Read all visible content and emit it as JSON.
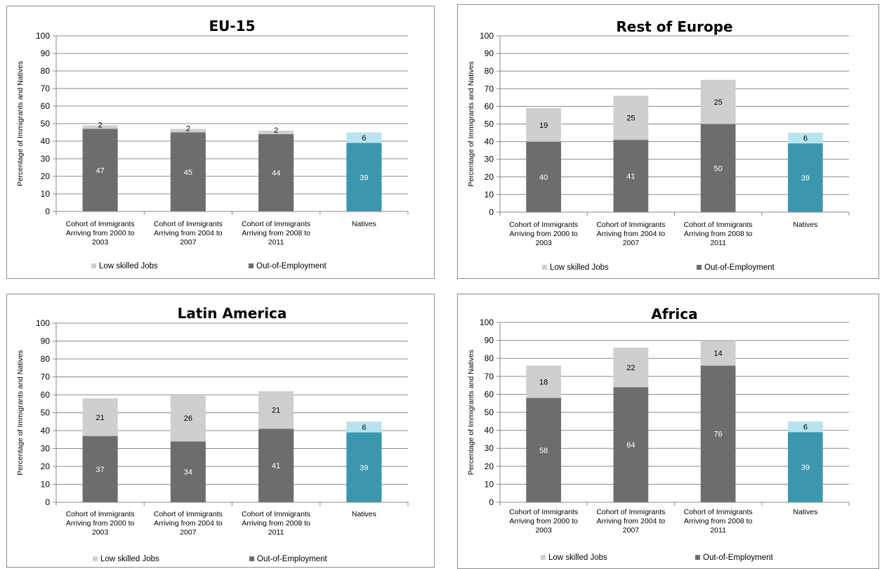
{
  "chart_data": [
    {
      "type": "bar",
      "stacked": true,
      "title": "EU-15",
      "ylabel": "Percentage of Immigrants and Natives",
      "ylim": [
        0,
        100
      ],
      "yticks": [
        0,
        10,
        20,
        30,
        40,
        50,
        60,
        70,
        80,
        90,
        100
      ],
      "categories": [
        [
          "Cohort of Immigrants",
          "Arriving from 2000 to",
          "2003"
        ],
        [
          "Cohort of Immigrants",
          "Arriving from 2004 to",
          "2007"
        ],
        [
          "Cohort of Immigrants",
          "Arriving from 2008 to",
          "2011"
        ],
        [
          "Natives"
        ]
      ],
      "series": [
        {
          "name": "Out-of-Employment",
          "values": [
            47,
            45,
            44,
            39
          ]
        },
        {
          "name": "Low skilled Jobs",
          "values": [
            2,
            2,
            2,
            6
          ]
        }
      ],
      "legend_position": "bottom"
    },
    {
      "type": "bar",
      "stacked": true,
      "title": "Rest of Europe",
      "ylabel": "Percentage of Immigrants and Natives",
      "ylim": [
        0,
        100
      ],
      "yticks": [
        0,
        10,
        20,
        30,
        40,
        50,
        60,
        70,
        80,
        90,
        100
      ],
      "categories": [
        [
          "Cohort of Immigrants",
          "Arriving from 2000 to",
          "2003"
        ],
        [
          "Cohort of Immigrants",
          "Arriving from 2004 to",
          "2007"
        ],
        [
          "Cohort of Immigrants",
          "Arriving from 2008 to",
          "2011"
        ],
        [
          "Natives"
        ]
      ],
      "series": [
        {
          "name": "Out-of-Employment",
          "values": [
            40,
            41,
            50,
            39
          ]
        },
        {
          "name": "Low skilled Jobs",
          "values": [
            19,
            25,
            25,
            6
          ]
        }
      ],
      "legend_position": "bottom"
    },
    {
      "type": "bar",
      "stacked": true,
      "title": "Latin America",
      "ylabel": "Percentage of Immigrants and Natives",
      "ylim": [
        0,
        100
      ],
      "yticks": [
        0,
        10,
        20,
        30,
        40,
        50,
        60,
        70,
        80,
        90,
        100
      ],
      "categories": [
        [
          "Cohort of Immigrants",
          "Arriving from 2000 to",
          "2003"
        ],
        [
          "Cohort of Immigrants",
          "Arriving from 2004 to",
          "2007"
        ],
        [
          "Cohort of Immigrants",
          "Arriving from 2008 to",
          "2011"
        ],
        [
          "Natives"
        ]
      ],
      "series": [
        {
          "name": "Out-of-Employment",
          "values": [
            37,
            34,
            41,
            39
          ]
        },
        {
          "name": "Low skilled Jobs",
          "values": [
            21,
            26,
            21,
            6
          ]
        }
      ],
      "legend_position": "bottom"
    },
    {
      "type": "bar",
      "stacked": true,
      "title": "Africa",
      "ylabel": "Percentage of Immigrants and Natives",
      "ylim": [
        0,
        100
      ],
      "yticks": [
        0,
        10,
        20,
        30,
        40,
        50,
        60,
        70,
        80,
        90,
        100
      ],
      "categories": [
        [
          "Cohort of Immigrants",
          "Arriving from 2000 to",
          "2003"
        ],
        [
          "Cohort of Immigrants",
          "Arriving from 2004 to",
          "2007"
        ],
        [
          "Cohort of Immigrants",
          "Arriving from 2008 to",
          "2011"
        ],
        [
          "Natives"
        ]
      ],
      "series": [
        {
          "name": "Out-of-Employment",
          "values": [
            58,
            64,
            76,
            39
          ]
        },
        {
          "name": "Low skilled Jobs",
          "values": [
            18,
            22,
            14,
            6
          ]
        }
      ],
      "legend_position": "bottom"
    }
  ],
  "colors": {
    "out_of_employment": "#6d6d6d",
    "low_skilled": "#cfcfcf",
    "natives_out_of_employment": "#3a97ad",
    "natives_low_skilled": "#b9e3ee",
    "gridline": "#8a8a8a",
    "axis": "#8a8a8a"
  }
}
